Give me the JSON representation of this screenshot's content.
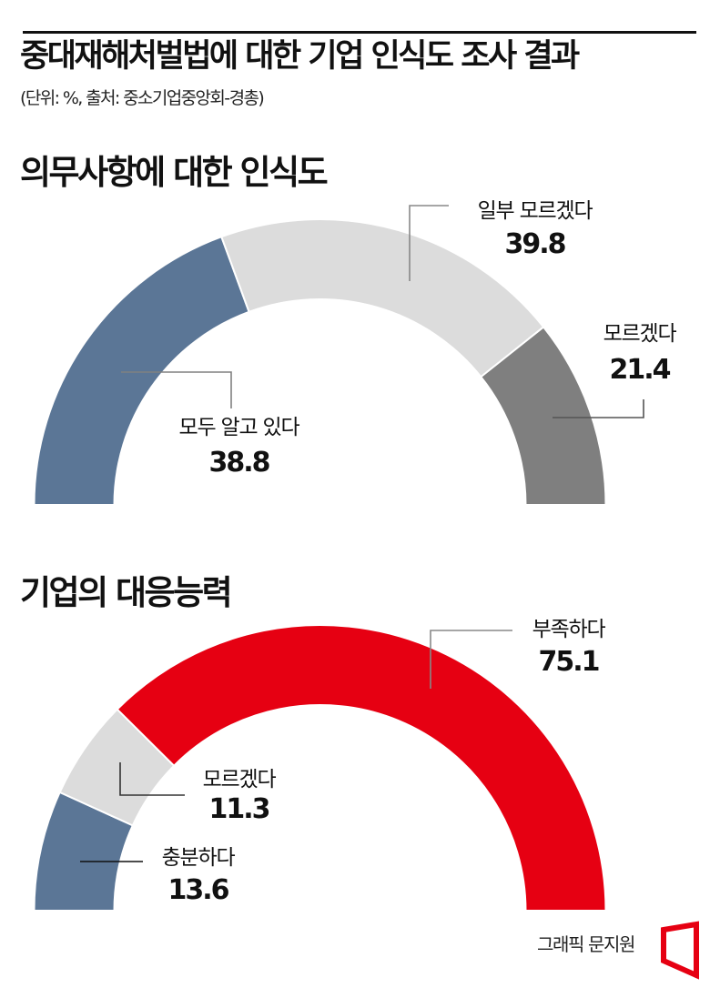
{
  "header": {
    "title": "중대재해처벌법에 대한 기업 인식도 조사 결과",
    "source": "(단위: %, 출처: 중소기업중앙회-경총)"
  },
  "chart_data": [
    {
      "type": "pie",
      "variant": "semi-donut",
      "title": "의무사항에 대한 인식도",
      "unit": "%",
      "categories": [
        "모두 알고 있다",
        "일부 모르겠다",
        "모르겠다"
      ],
      "values": [
        38.8,
        39.8,
        21.4
      ],
      "colors": [
        "#5b7696",
        "#dcdcdc",
        "#7f7f7f"
      ],
      "labels": [
        {
          "label": "모두 알고 있다",
          "value": "38.8"
        },
        {
          "label": "일부 모르겠다",
          "value": "39.8"
        },
        {
          "label": "모르겠다",
          "value": "21.4"
        }
      ]
    },
    {
      "type": "pie",
      "variant": "semi-donut",
      "title": "기업의 대응능력",
      "unit": "%",
      "categories": [
        "충분하다",
        "모르겠다",
        "부족하다"
      ],
      "values": [
        13.6,
        11.3,
        75.1
      ],
      "colors": [
        "#5b7696",
        "#dcdcdc",
        "#e60012"
      ],
      "labels": [
        {
          "label": "충분하다",
          "value": "13.6"
        },
        {
          "label": "모르겠다",
          "value": "11.3"
        },
        {
          "label": "부족하다",
          "value": "75.1"
        }
      ]
    }
  ],
  "footer": {
    "credit": "그래픽 문지원",
    "logo_color": "#e60012"
  }
}
